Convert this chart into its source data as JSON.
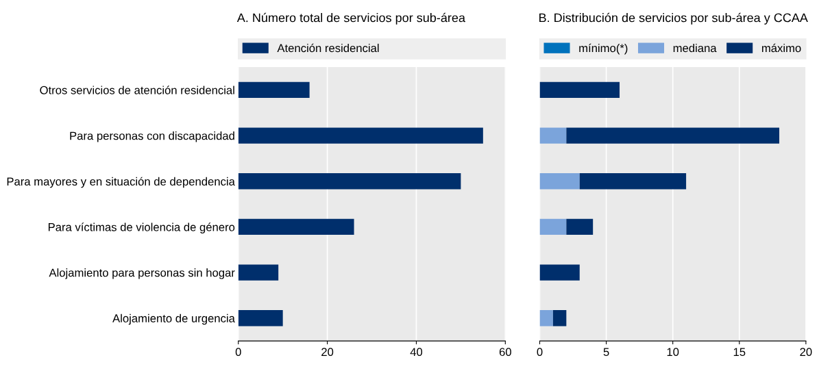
{
  "chart_data": [
    {
      "type": "bar",
      "orientation": "horizontal",
      "title": "A. Número total de servicios por sub-área",
      "categories": [
        "Otros servicios de atención residencial",
        "Para personas con discapacidad",
        "Para mayores y en situación de dependencia",
        "Para víctimas de violencia de género",
        "Alojamiento para personas sin hogar",
        "Alojamiento de urgencia"
      ],
      "series": [
        {
          "name": "Atención residencial",
          "color": "#002f6c",
          "values": [
            16,
            55,
            50,
            26,
            9,
            10
          ]
        }
      ],
      "xlim": [
        0,
        60
      ],
      "xticks": [
        0,
        20,
        40,
        60
      ],
      "grid": "x",
      "legend": "top"
    },
    {
      "type": "bar",
      "orientation": "horizontal",
      "stacked": true,
      "title": "B. Distribución de servicios por sub-área y CCAA",
      "categories": [
        null,
        null,
        null,
        null,
        null,
        null
      ],
      "series": [
        {
          "name": "mínimo(*)",
          "color": "#0072bc",
          "values": [
            0,
            0,
            0,
            0,
            0,
            0
          ]
        },
        {
          "name": "mediana",
          "color": "#7ba4db",
          "values": [
            0,
            2,
            3,
            2,
            0,
            1
          ]
        },
        {
          "name": "máximo",
          "color": "#002f6c",
          "values": [
            6,
            16,
            8,
            2,
            3,
            1
          ]
        }
      ],
      "xlim": [
        0,
        20
      ],
      "xticks": [
        0,
        5,
        10,
        15,
        20
      ],
      "grid": "x",
      "legend": "top"
    }
  ]
}
